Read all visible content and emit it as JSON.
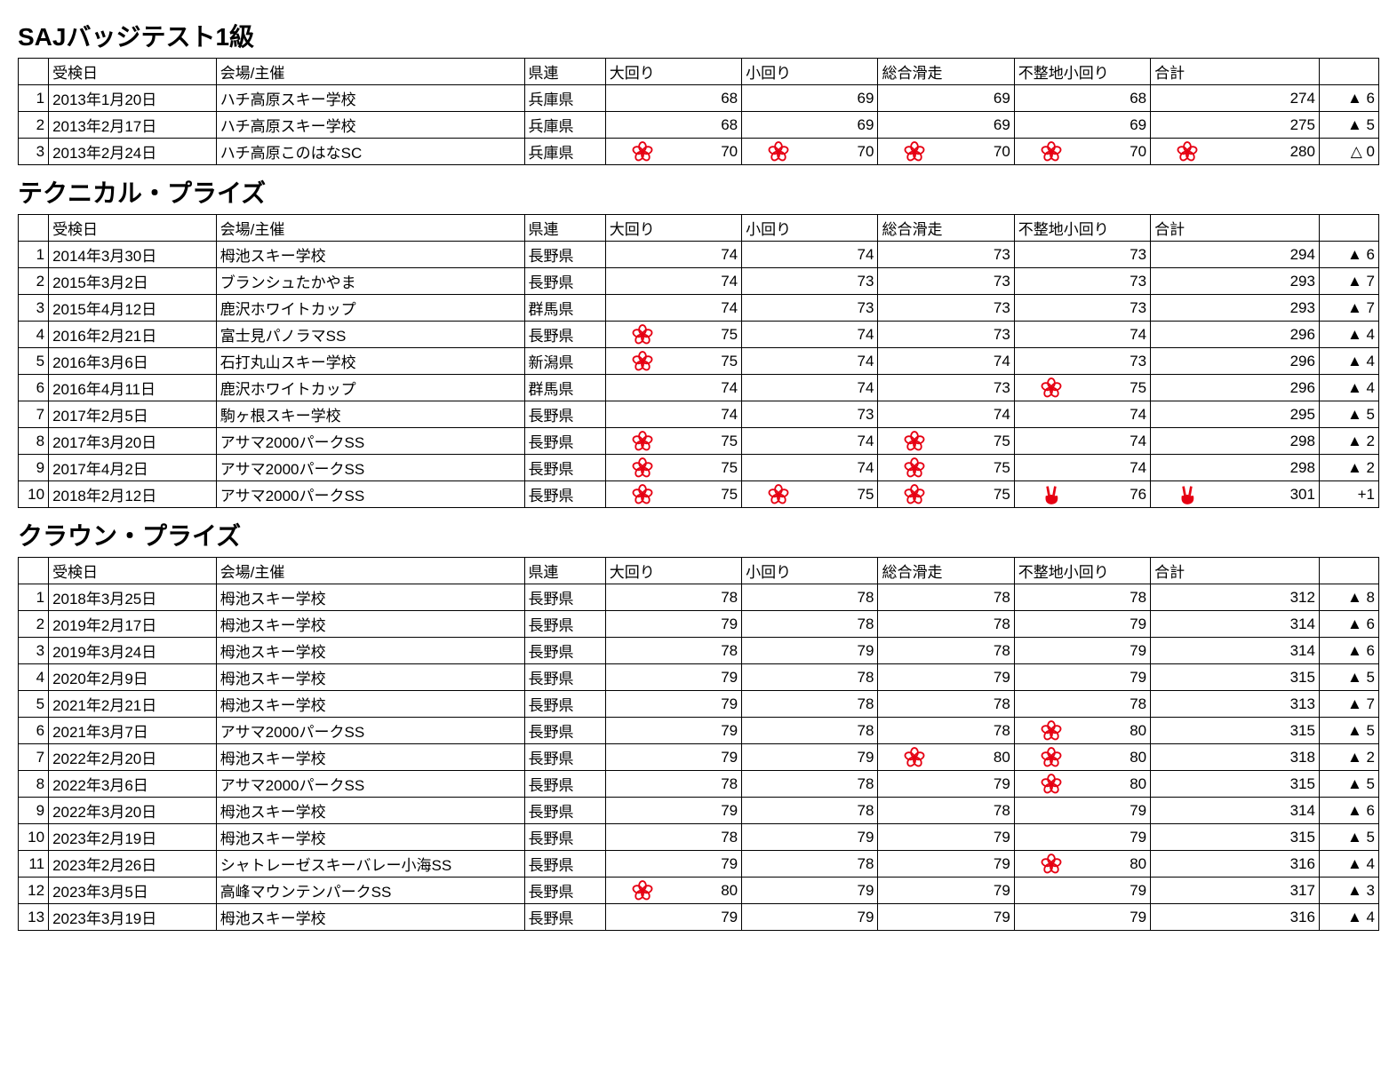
{
  "icon_color": "#e60012",
  "sections": [
    {
      "title": "SAJバッジテスト1級",
      "headers": [
        "",
        "受検日",
        "会場/主催",
        "県連",
        "大回り",
        "小回り",
        "総合滑走",
        "不整地小回り",
        "合計",
        ""
      ],
      "rows": [
        {
          "n": 1,
          "date": "2013年1月20日",
          "venue": "ハチ高原スキー学校",
          "pref": "兵庫県",
          "s": [
            {
              "v": 68
            },
            {
              "v": 69
            },
            {
              "v": 69
            },
            {
              "v": 68
            }
          ],
          "total": {
            "v": 274
          },
          "diff": "▲ 6"
        },
        {
          "n": 2,
          "date": "2013年2月17日",
          "venue": "ハチ高原スキー学校",
          "pref": "兵庫県",
          "s": [
            {
              "v": 68
            },
            {
              "v": 69
            },
            {
              "v": 69
            },
            {
              "v": 69
            }
          ],
          "total": {
            "v": 275
          },
          "diff": "▲ 5"
        },
        {
          "n": 3,
          "date": "2013年2月24日",
          "venue": "ハチ高原このはなSC",
          "pref": "兵庫県",
          "s": [
            {
              "v": 70,
              "i": "f"
            },
            {
              "v": 70,
              "i": "f"
            },
            {
              "v": 70,
              "i": "f"
            },
            {
              "v": 70,
              "i": "f"
            }
          ],
          "total": {
            "v": 280,
            "i": "f"
          },
          "diff": "△ 0"
        }
      ]
    },
    {
      "title": "テクニカル・プライズ",
      "headers": [
        "",
        "受検日",
        "会場/主催",
        "県連",
        "大回り",
        "小回り",
        "総合滑走",
        "不整地小回り",
        "合計",
        ""
      ],
      "rows": [
        {
          "n": 1,
          "date": "2014年3月30日",
          "venue": "栂池スキー学校",
          "pref": "長野県",
          "s": [
            {
              "v": 74
            },
            {
              "v": 74
            },
            {
              "v": 73
            },
            {
              "v": 73
            }
          ],
          "total": {
            "v": 294
          },
          "diff": "▲ 6"
        },
        {
          "n": 2,
          "date": "2015年3月2日",
          "venue": "ブランシュたかやま",
          "pref": "長野県",
          "s": [
            {
              "v": 74
            },
            {
              "v": 73
            },
            {
              "v": 73
            },
            {
              "v": 73
            }
          ],
          "total": {
            "v": 293
          },
          "diff": "▲ 7"
        },
        {
          "n": 3,
          "date": "2015年4月12日",
          "venue": "鹿沢ホワイトカップ",
          "pref": "群馬県",
          "s": [
            {
              "v": 74
            },
            {
              "v": 73
            },
            {
              "v": 73
            },
            {
              "v": 73
            }
          ],
          "total": {
            "v": 293
          },
          "diff": "▲ 7"
        },
        {
          "n": 4,
          "date": "2016年2月21日",
          "venue": "富士見パノラマSS",
          "pref": "長野県",
          "s": [
            {
              "v": 75,
              "i": "f"
            },
            {
              "v": 74
            },
            {
              "v": 73
            },
            {
              "v": 74
            }
          ],
          "total": {
            "v": 296
          },
          "diff": "▲ 4"
        },
        {
          "n": 5,
          "date": "2016年3月6日",
          "venue": "石打丸山スキー学校",
          "pref": "新潟県",
          "s": [
            {
              "v": 75,
              "i": "f"
            },
            {
              "v": 74
            },
            {
              "v": 74
            },
            {
              "v": 73
            }
          ],
          "total": {
            "v": 296
          },
          "diff": "▲ 4"
        },
        {
          "n": 6,
          "date": "2016年4月11日",
          "venue": "鹿沢ホワイトカップ",
          "pref": "群馬県",
          "s": [
            {
              "v": 74
            },
            {
              "v": 74
            },
            {
              "v": 73
            },
            {
              "v": 75,
              "i": "f"
            }
          ],
          "total": {
            "v": 296
          },
          "diff": "▲ 4"
        },
        {
          "n": 7,
          "date": "2017年2月5日",
          "venue": "駒ヶ根スキー学校",
          "pref": "長野県",
          "s": [
            {
              "v": 74
            },
            {
              "v": 73
            },
            {
              "v": 74
            },
            {
              "v": 74
            }
          ],
          "total": {
            "v": 295
          },
          "diff": "▲ 5"
        },
        {
          "n": 8,
          "date": "2017年3月20日",
          "venue": "アサマ2000パークSS",
          "pref": "長野県",
          "s": [
            {
              "v": 75,
              "i": "f"
            },
            {
              "v": 74
            },
            {
              "v": 75,
              "i": "f"
            },
            {
              "v": 74
            }
          ],
          "total": {
            "v": 298
          },
          "diff": "▲ 2"
        },
        {
          "n": 9,
          "date": "2017年4月2日",
          "venue": "アサマ2000パークSS",
          "pref": "長野県",
          "s": [
            {
              "v": 75,
              "i": "f"
            },
            {
              "v": 74
            },
            {
              "v": 75,
              "i": "f"
            },
            {
              "v": 74
            }
          ],
          "total": {
            "v": 298
          },
          "diff": "▲ 2"
        },
        {
          "n": 10,
          "date": "2018年2月12日",
          "venue": "アサマ2000パークSS",
          "pref": "長野県",
          "s": [
            {
              "v": 75,
              "i": "f"
            },
            {
              "v": 75,
              "i": "f"
            },
            {
              "v": 75,
              "i": "f"
            },
            {
              "v": 76,
              "i": "p"
            }
          ],
          "total": {
            "v": 301,
            "i": "p"
          },
          "diff": "+1"
        }
      ]
    },
    {
      "title": "クラウン・プライズ",
      "headers": [
        "",
        "受検日",
        "会場/主催",
        "県連",
        "大回り",
        "小回り",
        "総合滑走",
        "不整地小回り",
        "合計",
        ""
      ],
      "rows": [
        {
          "n": 1,
          "date": "2018年3月25日",
          "venue": "栂池スキー学校",
          "pref": "長野県",
          "s": [
            {
              "v": 78
            },
            {
              "v": 78
            },
            {
              "v": 78
            },
            {
              "v": 78
            }
          ],
          "total": {
            "v": 312
          },
          "diff": "▲ 8"
        },
        {
          "n": 2,
          "date": "2019年2月17日",
          "venue": "栂池スキー学校",
          "pref": "長野県",
          "s": [
            {
              "v": 79
            },
            {
              "v": 78
            },
            {
              "v": 78
            },
            {
              "v": 79
            }
          ],
          "total": {
            "v": 314
          },
          "diff": "▲ 6"
        },
        {
          "n": 3,
          "date": "2019年3月24日",
          "venue": "栂池スキー学校",
          "pref": "長野県",
          "s": [
            {
              "v": 78
            },
            {
              "v": 79
            },
            {
              "v": 78
            },
            {
              "v": 79
            }
          ],
          "total": {
            "v": 314
          },
          "diff": "▲ 6"
        },
        {
          "n": 4,
          "date": "2020年2月9日",
          "venue": "栂池スキー学校",
          "pref": "長野県",
          "s": [
            {
              "v": 79
            },
            {
              "v": 78
            },
            {
              "v": 79
            },
            {
              "v": 79
            }
          ],
          "total": {
            "v": 315
          },
          "diff": "▲ 5"
        },
        {
          "n": 5,
          "date": "2021年2月21日",
          "venue": "栂池スキー学校",
          "pref": "長野県",
          "s": [
            {
              "v": 79
            },
            {
              "v": 78
            },
            {
              "v": 78
            },
            {
              "v": 78
            }
          ],
          "total": {
            "v": 313
          },
          "diff": "▲ 7"
        },
        {
          "n": 6,
          "date": "2021年3月7日",
          "venue": "アサマ2000パークSS",
          "pref": "長野県",
          "s": [
            {
              "v": 79
            },
            {
              "v": 78
            },
            {
              "v": 78
            },
            {
              "v": 80,
              "i": "f"
            }
          ],
          "total": {
            "v": 315
          },
          "diff": "▲ 5"
        },
        {
          "n": 7,
          "date": "2022年2月20日",
          "venue": "栂池スキー学校",
          "pref": "長野県",
          "s": [
            {
              "v": 79
            },
            {
              "v": 79
            },
            {
              "v": 80,
              "i": "f"
            },
            {
              "v": 80,
              "i": "f"
            }
          ],
          "total": {
            "v": 318
          },
          "diff": "▲ 2"
        },
        {
          "n": 8,
          "date": "2022年3月6日",
          "venue": "アサマ2000パークSS",
          "pref": "長野県",
          "s": [
            {
              "v": 78
            },
            {
              "v": 78
            },
            {
              "v": 79
            },
            {
              "v": 80,
              "i": "f"
            }
          ],
          "total": {
            "v": 315
          },
          "diff": "▲ 5"
        },
        {
          "n": 9,
          "date": "2022年3月20日",
          "venue": "栂池スキー学校",
          "pref": "長野県",
          "s": [
            {
              "v": 79
            },
            {
              "v": 78
            },
            {
              "v": 78
            },
            {
              "v": 79
            }
          ],
          "total": {
            "v": 314
          },
          "diff": "▲ 6"
        },
        {
          "n": 10,
          "date": "2023年2月19日",
          "venue": "栂池スキー学校",
          "pref": "長野県",
          "s": [
            {
              "v": 78
            },
            {
              "v": 79
            },
            {
              "v": 79
            },
            {
              "v": 79
            }
          ],
          "total": {
            "v": 315
          },
          "diff": "▲ 5"
        },
        {
          "n": 11,
          "date": "2023年2月26日",
          "venue": "シャトレーゼスキーバレー小海SS",
          "pref": "長野県",
          "s": [
            {
              "v": 79
            },
            {
              "v": 78
            },
            {
              "v": 79
            },
            {
              "v": 80,
              "i": "f"
            }
          ],
          "total": {
            "v": 316
          },
          "diff": "▲ 4"
        },
        {
          "n": 12,
          "date": "2023年3月5日",
          "venue": "高峰マウンテンパークSS",
          "pref": "長野県",
          "s": [
            {
              "v": 80,
              "i": "f"
            },
            {
              "v": 79
            },
            {
              "v": 79
            },
            {
              "v": 79
            }
          ],
          "total": {
            "v": 317
          },
          "diff": "▲ 3"
        },
        {
          "n": 13,
          "date": "2023年3月19日",
          "venue": "栂池スキー学校",
          "pref": "長野県",
          "s": [
            {
              "v": 79
            },
            {
              "v": 79
            },
            {
              "v": 79
            },
            {
              "v": 79
            }
          ],
          "total": {
            "v": 316
          },
          "diff": "▲ 4"
        }
      ]
    }
  ]
}
